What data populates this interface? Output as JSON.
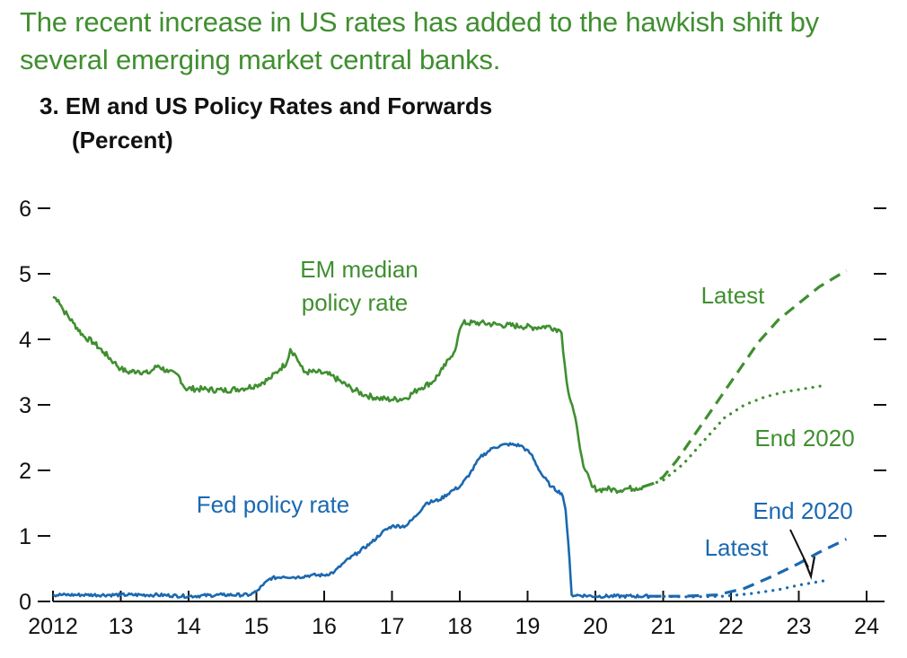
{
  "headline": {
    "line1": "The recent increase in US rates has added to the hawkish shift by",
    "line2": "several emerging market central banks."
  },
  "chart_data": {
    "type": "line",
    "title": "3. EM and US Policy Rates and Forwards",
    "unit": "(Percent)",
    "xlabel": "",
    "ylabel": "Percent",
    "xlim": [
      2012,
      2024
    ],
    "ylim": [
      0,
      6
    ],
    "x_tick_labels": [
      {
        "x": 2012,
        "label": "2012"
      },
      {
        "x": 2013,
        "label": "13"
      },
      {
        "x": 2014,
        "label": "14"
      },
      {
        "x": 2015,
        "label": "15"
      },
      {
        "x": 2016,
        "label": "16"
      },
      {
        "x": 2017,
        "label": "17"
      },
      {
        "x": 2018,
        "label": "18"
      },
      {
        "x": 2019,
        "label": "19"
      },
      {
        "x": 2020,
        "label": "20"
      },
      {
        "x": 2021,
        "label": "21"
      },
      {
        "x": 2022,
        "label": "22"
      },
      {
        "x": 2023,
        "label": "23"
      },
      {
        "x": 2024,
        "label": "24"
      }
    ],
    "y_tick_labels": [
      {
        "y": 0,
        "label": "0"
      },
      {
        "y": 1,
        "label": "1"
      },
      {
        "y": 2,
        "label": "2"
      },
      {
        "y": 3,
        "label": "3"
      },
      {
        "y": 4,
        "label": "4"
      },
      {
        "y": 5,
        "label": "5"
      },
      {
        "y": 6,
        "label": "6"
      }
    ],
    "colors": {
      "em": "#3f8f2f",
      "us": "#1a68b0",
      "axis": "#111111"
    },
    "series": [
      {
        "name": "EM median policy rate",
        "color": "#3f8f2f",
        "style": "solid",
        "x": [
          2012.0,
          2012.08,
          2012.15,
          2012.3,
          2012.45,
          2012.6,
          2012.75,
          2012.9,
          2013.0,
          2013.1,
          2013.25,
          2013.4,
          2013.55,
          2013.7,
          2013.85,
          2013.95,
          2014.2,
          2014.5,
          2014.8,
          2015.0,
          2015.2,
          2015.35,
          2015.45,
          2015.5,
          2015.58,
          2015.65,
          2015.7,
          2015.9,
          2016.1,
          2016.25,
          2016.4,
          2016.6,
          2016.8,
          2017.0,
          2017.2,
          2017.4,
          2017.6,
          2017.75,
          2017.85,
          2017.95,
          2018.0,
          2018.05,
          2018.3,
          2018.6,
          2018.9,
          2019.1,
          2019.3,
          2019.45,
          2019.5,
          2019.55,
          2019.6,
          2019.68,
          2019.75,
          2019.8,
          2019.85,
          2019.95,
          2020.05,
          2020.15,
          2020.3,
          2020.45,
          2020.6,
          2020.7
        ],
        "y": [
          4.65,
          4.6,
          4.45,
          4.25,
          4.05,
          3.95,
          3.8,
          3.65,
          3.55,
          3.5,
          3.52,
          3.48,
          3.6,
          3.5,
          3.45,
          3.25,
          3.24,
          3.22,
          3.25,
          3.3,
          3.4,
          3.55,
          3.65,
          3.85,
          3.75,
          3.6,
          3.5,
          3.5,
          3.45,
          3.35,
          3.25,
          3.15,
          3.1,
          3.08,
          3.1,
          3.25,
          3.35,
          3.55,
          3.7,
          3.9,
          4.15,
          4.25,
          4.25,
          4.22,
          4.2,
          4.18,
          4.2,
          4.15,
          4.1,
          3.6,
          3.2,
          2.9,
          2.5,
          2.2,
          2.0,
          1.75,
          1.7,
          1.72,
          1.7,
          1.72,
          1.73,
          1.75
        ]
      },
      {
        "name": "EM forward (Latest)",
        "color": "#3f8f2f",
        "style": "dashed",
        "x": [
          2020.7,
          2020.85,
          2021.0,
          2021.2,
          2021.5,
          2021.8,
          2022.1,
          2022.4,
          2022.7,
          2023.0,
          2023.3,
          2023.7
        ],
        "y": [
          1.75,
          1.8,
          1.9,
          2.15,
          2.6,
          3.05,
          3.5,
          3.95,
          4.3,
          4.55,
          4.8,
          5.05
        ]
      },
      {
        "name": "EM forward (End 2020)",
        "color": "#3f8f2f",
        "style": "dotted",
        "x": [
          2020.7,
          2021.0,
          2021.3,
          2021.6,
          2021.9,
          2022.2,
          2022.5,
          2022.8,
          2023.1,
          2023.4
        ],
        "y": [
          1.75,
          1.85,
          2.1,
          2.45,
          2.8,
          3.0,
          3.12,
          3.2,
          3.25,
          3.3
        ]
      },
      {
        "name": "Fed policy rate",
        "color": "#1a68b0",
        "style": "solid",
        "x": [
          2012.0,
          2012.5,
          2013.0,
          2013.5,
          2014.0,
          2014.5,
          2014.9,
          2015.0,
          2015.1,
          2015.2,
          2015.4,
          2015.6,
          2015.8,
          2016.0,
          2016.15,
          2016.3,
          2016.5,
          2016.7,
          2016.85,
          2017.0,
          2017.2,
          2017.35,
          2017.5,
          2017.7,
          2017.9,
          2018.0,
          2018.15,
          2018.3,
          2018.5,
          2018.7,
          2018.9,
          2019.05,
          2019.2,
          2019.35,
          2019.5,
          2019.52,
          2019.56,
          2019.6,
          2019.65,
          2020.0,
          2020.4,
          2020.8
        ],
        "y": [
          0.1,
          0.1,
          0.1,
          0.1,
          0.08,
          0.1,
          0.1,
          0.15,
          0.25,
          0.35,
          0.38,
          0.37,
          0.4,
          0.4,
          0.45,
          0.6,
          0.75,
          0.9,
          1.05,
          1.15,
          1.15,
          1.3,
          1.5,
          1.55,
          1.7,
          1.75,
          1.95,
          2.2,
          2.35,
          2.4,
          2.38,
          2.25,
          1.95,
          1.75,
          1.65,
          1.6,
          1.4,
          0.9,
          0.1,
          0.08,
          0.08,
          0.08
        ]
      },
      {
        "name": "Fed forward (Latest)",
        "color": "#1a68b0",
        "style": "dashed",
        "x": [
          2020.8,
          2021.3,
          2021.8,
          2022.2,
          2022.6,
          2023.0,
          2023.3,
          2023.7
        ],
        "y": [
          0.08,
          0.08,
          0.1,
          0.2,
          0.38,
          0.58,
          0.75,
          0.95
        ]
      },
      {
        "name": "Fed forward (End 2020)",
        "color": "#1a68b0",
        "style": "dotted",
        "x": [
          2020.8,
          2021.4,
          2021.9,
          2022.3,
          2022.7,
          2023.0,
          2023.4
        ],
        "y": [
          0.08,
          0.07,
          0.08,
          0.12,
          0.18,
          0.25,
          0.32
        ]
      }
    ],
    "annotations": [
      {
        "text": "EM median",
        "color": "#3f8f2f"
      },
      {
        "text": "policy rate",
        "color": "#3f8f2f"
      },
      {
        "text": "Latest",
        "color": "#3f8f2f"
      },
      {
        "text": "End 2020",
        "color": "#3f8f2f"
      },
      {
        "text": "Fed policy rate",
        "color": "#1a68b0"
      },
      {
        "text": "End 2020",
        "color": "#1a68b0"
      },
      {
        "text": "Latest",
        "color": "#1a68b0"
      }
    ]
  }
}
